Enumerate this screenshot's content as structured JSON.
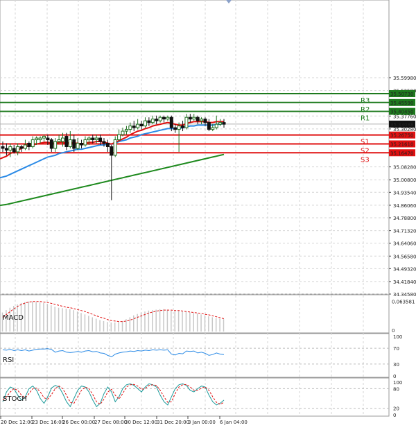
{
  "chart_data": {
    "type": "candlestick",
    "price_axis": {
      "ymin": 34.3458,
      "ymax": 36.05,
      "ticks": [
        "35.59980",
        "35.52500",
        "35.37760",
        "35.30280",
        "35.08280",
        "35.00800",
        "34.93540",
        "34.86060",
        "34.78800",
        "34.71320",
        "34.64060",
        "34.56580",
        "34.49320",
        "34.41840",
        "34.34580"
      ]
    },
    "time_labels": [
      "20 Dec 12:00",
      "23 Dec 16:00",
      "26 Dec 00:00",
      "27 Dec 08:00",
      "30 Dec 12:00",
      "31 Dec 20:00",
      "3 Jan 00:00",
      "6 Jan 04:00"
    ],
    "levels": [
      {
        "name": "R3",
        "value": 35.5073,
        "label": "35.50730",
        "color": "#1e7a1e"
      },
      {
        "name": "R2",
        "value": 35.4559,
        "label": "35.45590",
        "color": "#1e7a1e"
      },
      {
        "name": "R1",
        "value": 35.4045,
        "label": "35.40450",
        "color": "#1e7a1e"
      },
      {
        "name": "S1",
        "value": 35.2675,
        "label": "35.26750",
        "color": "#e01010"
      },
      {
        "name": "S2",
        "value": 35.2161,
        "label": "35.21610",
        "color": "#e01010"
      },
      {
        "name": "S3",
        "value": 35.1647,
        "label": "35.16470",
        "color": "#e01010"
      }
    ],
    "current_price": {
      "value": 35.33088,
      "label": "35.33088"
    },
    "candles": [
      [
        35.2,
        35.19,
        35.23,
        35.17
      ],
      [
        35.19,
        35.18,
        35.22,
        35.15
      ],
      [
        35.18,
        35.2,
        35.22,
        35.14
      ],
      [
        35.19,
        35.17,
        35.21,
        35.16
      ],
      [
        35.17,
        35.2,
        35.22,
        35.15
      ],
      [
        35.2,
        35.19,
        35.21,
        35.17
      ],
      [
        35.19,
        35.21,
        35.24,
        35.18
      ],
      [
        35.22,
        35.2,
        35.23,
        35.18
      ],
      [
        35.2,
        35.24,
        35.26,
        35.19
      ],
      [
        35.24,
        35.25,
        35.26,
        35.21
      ],
      [
        35.24,
        35.25,
        35.26,
        35.22
      ],
      [
        35.25,
        35.26,
        35.27,
        35.23
      ],
      [
        35.25,
        35.24,
        35.27,
        35.21
      ],
      [
        35.24,
        35.19,
        35.25,
        35.17
      ],
      [
        35.19,
        35.23,
        35.25,
        35.17
      ],
      [
        35.23,
        35.24,
        35.27,
        35.22
      ],
      [
        35.23,
        35.25,
        35.28,
        35.2
      ],
      [
        35.26,
        35.2,
        35.28,
        35.18
      ],
      [
        35.2,
        35.24,
        35.29,
        35.19
      ],
      [
        35.24,
        35.19,
        35.27,
        35.17
      ],
      [
        35.19,
        35.22,
        35.25,
        35.18
      ],
      [
        35.22,
        35.21,
        35.24,
        35.19
      ],
      [
        35.21,
        35.24,
        35.26,
        35.2
      ],
      [
        35.24,
        35.25,
        35.26,
        35.21
      ],
      [
        35.25,
        35.24,
        35.27,
        35.22
      ],
      [
        35.24,
        35.25,
        35.27,
        35.22
      ],
      [
        35.25,
        35.23,
        35.27,
        35.21
      ],
      [
        35.23,
        35.22,
        35.25,
        35.2
      ],
      [
        35.22,
        35.2,
        35.24,
        35.17
      ],
      [
        35.2,
        35.15,
        35.21,
        34.89
      ],
      [
        35.15,
        35.24,
        35.26,
        35.14
      ],
      [
        35.24,
        35.27,
        35.3,
        35.23
      ],
      [
        35.27,
        35.29,
        35.31,
        35.26
      ],
      [
        35.29,
        35.3,
        35.32,
        35.27
      ],
      [
        35.3,
        35.32,
        35.34,
        35.28
      ],
      [
        35.32,
        35.31,
        35.35,
        35.29
      ],
      [
        35.31,
        35.33,
        35.36,
        35.3
      ],
      [
        35.33,
        35.32,
        35.35,
        35.3
      ],
      [
        35.32,
        35.35,
        35.37,
        35.31
      ],
      [
        35.35,
        35.34,
        35.37,
        35.32
      ],
      [
        35.34,
        35.36,
        35.38,
        35.33
      ],
      [
        35.36,
        35.35,
        35.38,
        35.33
      ],
      [
        35.35,
        35.37,
        35.38,
        35.34
      ],
      [
        35.37,
        35.36,
        35.38,
        35.34
      ],
      [
        35.36,
        35.37,
        35.38,
        35.35
      ],
      [
        35.37,
        35.31,
        35.38,
        35.29
      ],
      [
        35.31,
        35.3,
        35.33,
        35.28
      ],
      [
        35.3,
        35.32,
        35.34,
        35.17
      ],
      [
        35.32,
        35.31,
        35.35,
        35.29
      ],
      [
        35.31,
        35.37,
        35.39,
        35.3
      ],
      [
        35.37,
        35.36,
        35.39,
        35.34
      ],
      [
        35.36,
        35.37,
        35.39,
        35.35
      ],
      [
        35.37,
        35.35,
        35.38,
        35.33
      ],
      [
        35.35,
        35.36,
        35.37,
        35.33
      ],
      [
        35.36,
        35.34,
        35.37,
        35.32
      ],
      [
        35.34,
        35.3,
        35.36,
        35.29
      ],
      [
        35.3,
        35.31,
        35.33,
        35.29
      ],
      [
        35.31,
        35.33,
        35.38,
        35.3
      ],
      [
        35.33,
        35.34,
        35.36,
        35.32
      ],
      [
        35.34,
        35.33,
        35.36,
        35.31
      ]
    ],
    "ma_red": [
      35.13,
      35.145,
      35.16,
      35.17,
      35.18,
      35.19,
      35.2,
      35.205,
      35.21,
      35.215,
      35.22,
      35.225,
      35.225,
      35.22,
      35.22,
      35.225,
      35.225,
      35.22,
      35.225,
      35.22,
      35.22,
      35.215,
      35.22,
      35.225,
      35.225,
      35.23,
      35.23,
      35.225,
      35.22,
      35.215,
      35.225,
      35.235,
      35.245,
      35.255,
      35.27,
      35.28,
      35.29,
      35.295,
      35.305,
      35.31,
      35.32,
      35.325,
      35.33,
      35.335,
      35.34,
      35.335,
      35.33,
      35.325,
      35.325,
      35.335,
      35.34,
      35.345,
      35.345,
      35.345,
      35.345,
      35.34,
      35.34,
      35.345,
      35.345,
      35.345
    ],
    "ma_blue": [
      35.02,
      35.03,
      35.04,
      35.05,
      35.06,
      35.07,
      35.08,
      35.09,
      35.1,
      35.11,
      35.12,
      35.13,
      35.14,
      35.145,
      35.15,
      35.16,
      35.165,
      35.17,
      35.175,
      35.18,
      35.185,
      35.185,
      35.19,
      35.195,
      35.2,
      35.205,
      35.21,
      35.21,
      35.215,
      35.215,
      35.22,
      35.23,
      35.235,
      35.24,
      35.25,
      35.255,
      35.26,
      35.27,
      35.275,
      35.28,
      35.285,
      35.29,
      35.295,
      35.3,
      35.305,
      35.305,
      35.305,
      35.305,
      35.31,
      35.315,
      35.32,
      35.32,
      35.325,
      35.325,
      35.325,
      35.325,
      35.325,
      35.33,
      35.33,
      35.335
    ],
    "ma_green": [
      34.86,
      34.865,
      34.87,
      34.875,
      34.88,
      34.885,
      34.89,
      34.895,
      34.9,
      34.905,
      34.91,
      34.915,
      34.92,
      34.925,
      34.93,
      34.935,
      34.94,
      34.945,
      34.95,
      34.955,
      34.96,
      34.965,
      34.97,
      34.975,
      34.98,
      34.985,
      34.99,
      34.995,
      35.0,
      35.005,
      35.01,
      35.015,
      35.02,
      35.025,
      35.03,
      35.035,
      35.04,
      35.045,
      35.05,
      35.055,
      35.06,
      35.065,
      35.07,
      35.075,
      35.08,
      35.085,
      35.09,
      35.095,
      35.1,
      35.105,
      35.11,
      35.115,
      35.12,
      35.125,
      35.13,
      35.135,
      35.14,
      35.145,
      35.15,
      35.155
    ],
    "macd": {
      "label": "MACD",
      "top_label": "0.063581",
      "zero_label": "0",
      "ymin": 0,
      "ymax": 0.07,
      "hist": [
        0.04,
        0.045,
        0.05,
        0.054,
        0.057,
        0.06,
        0.062,
        0.063,
        0.063,
        0.062,
        0.061,
        0.06,
        0.058,
        0.055,
        0.052,
        0.05,
        0.049,
        0.048,
        0.047,
        0.045,
        0.042,
        0.039,
        0.036,
        0.033,
        0.03,
        0.027,
        0.024,
        0.022,
        0.02,
        0.019,
        0.019,
        0.02,
        0.022,
        0.026,
        0.03,
        0.034,
        0.037,
        0.04,
        0.042,
        0.044,
        0.045,
        0.046,
        0.047,
        0.047,
        0.046,
        0.044,
        0.043,
        0.043,
        0.042,
        0.042,
        0.04,
        0.039,
        0.038,
        0.036,
        0.034,
        0.032,
        0.03,
        0.028,
        0.027,
        0.026
      ],
      "signal": [
        0.03,
        0.036,
        0.042,
        0.048,
        0.053,
        0.057,
        0.06,
        0.062,
        0.063,
        0.063,
        0.063,
        0.062,
        0.061,
        0.059,
        0.057,
        0.055,
        0.053,
        0.051,
        0.05,
        0.048,
        0.046,
        0.044,
        0.042,
        0.039,
        0.036,
        0.033,
        0.03,
        0.028,
        0.025,
        0.023,
        0.022,
        0.021,
        0.021,
        0.022,
        0.024,
        0.027,
        0.03,
        0.033,
        0.036,
        0.039,
        0.041,
        0.043,
        0.044,
        0.045,
        0.045,
        0.045,
        0.044,
        0.044,
        0.043,
        0.042,
        0.041,
        0.04,
        0.039,
        0.038,
        0.036,
        0.035,
        0.033,
        0.031,
        0.029,
        0.027
      ]
    },
    "rsi": {
      "label": "RSI",
      "ticks": [
        "100",
        "70",
        "30",
        "0"
      ],
      "values": [
        66,
        65,
        67,
        64,
        66,
        64,
        66,
        63,
        65,
        67,
        68,
        68,
        69,
        67,
        60,
        63,
        64,
        60,
        59,
        60,
        62,
        60,
        63,
        64,
        61,
        62,
        58,
        57,
        52,
        48,
        55,
        58,
        60,
        61,
        63,
        62,
        64,
        63,
        65,
        64,
        66,
        65,
        66,
        65,
        66,
        55,
        53,
        57,
        56,
        63,
        62,
        63,
        58,
        60,
        57,
        52,
        54,
        58,
        55,
        54
      ]
    },
    "stoch": {
      "label": "STOCH",
      "ticks": [
        "100",
        "80",
        "20",
        "0"
      ],
      "k": [
        40,
        70,
        85,
        80,
        60,
        45,
        55,
        80,
        88,
        75,
        50,
        35,
        55,
        82,
        90,
        85,
        65,
        40,
        25,
        50,
        75,
        88,
        85,
        70,
        45,
        25,
        35,
        65,
        85,
        70,
        40,
        55,
        80,
        92,
        95,
        90,
        80,
        70,
        85,
        95,
        92,
        85,
        60,
        40,
        30,
        55,
        80,
        92,
        95,
        90,
        75,
        70,
        80,
        88,
        85,
        60,
        40,
        30,
        35,
        45
      ],
      "d": [
        45,
        55,
        70,
        80,
        75,
        60,
        52,
        65,
        80,
        82,
        70,
        52,
        48,
        62,
        80,
        88,
        80,
        60,
        38,
        35,
        55,
        75,
        85,
        80,
        62,
        40,
        32,
        48,
        70,
        78,
        60,
        48,
        65,
        85,
        92,
        93,
        88,
        78,
        80,
        90,
        92,
        90,
        75,
        55,
        38,
        40,
        65,
        85,
        92,
        93,
        85,
        75,
        75,
        82,
        85,
        75,
        55,
        38,
        32,
        38
      ]
    }
  }
}
